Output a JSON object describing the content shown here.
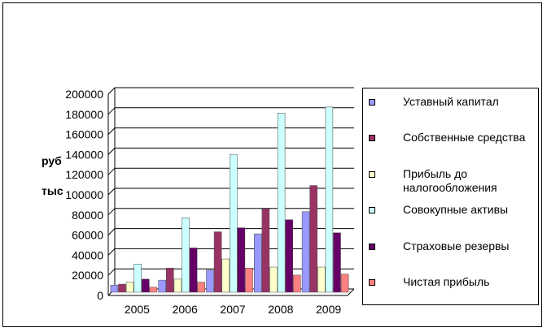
{
  "chart_data": {
    "type": "bar",
    "categories": [
      "2005",
      "2006",
      "2007",
      "2008",
      "2009"
    ],
    "ylabel_line1": "руб",
    "ylabel_line2": "тыс",
    "ylim": [
      0,
      200000
    ],
    "yticks": [
      "0",
      "20000",
      "40000",
      "60000",
      "80000",
      "100000",
      "120000",
      "140000",
      "160000",
      "180000",
      "200000"
    ],
    "grid": true,
    "legend_position": "right",
    "series": [
      {
        "name": "Уставный капитал",
        "color": "#9999ff",
        "values": [
          7000,
          12000,
          22000,
          58000,
          80000
        ]
      },
      {
        "name": "Собственные средства",
        "color": "#993366",
        "values": [
          8000,
          24000,
          60000,
          83000,
          106000
        ]
      },
      {
        "name": "Прибыль до налогообложения",
        "color": "#ffffcc",
        "values": [
          10000,
          13000,
          33000,
          25000,
          25000
        ]
      },
      {
        "name": "Совокупные активы",
        "color": "#ccffff",
        "values": [
          28000,
          74000,
          137000,
          178000,
          184000
        ]
      },
      {
        "name": "Страховые резервы",
        "color": "#660066",
        "values": [
          13000,
          44000,
          64000,
          72000,
          59000
        ]
      },
      {
        "name": "Чистая прибыль",
        "color": "#ff8080",
        "values": [
          5000,
          10000,
          24000,
          17000,
          18000
        ]
      }
    ]
  }
}
